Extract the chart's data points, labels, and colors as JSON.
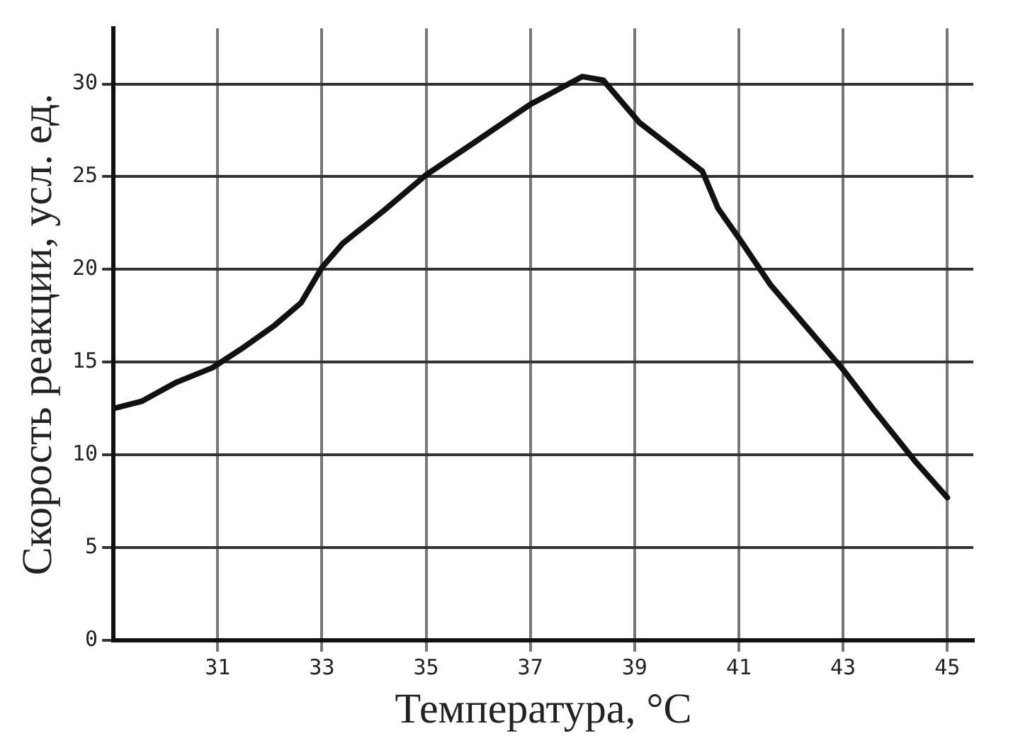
{
  "chart_data": {
    "type": "line",
    "xlabel": "Температура, °С",
    "ylabel": "Скорость реакции, усл. ед.",
    "xlim": [
      29,
      45.5
    ],
    "xticks": [
      31,
      33,
      35,
      37,
      39,
      41,
      43,
      45
    ],
    "ylim": [
      0,
      33
    ],
    "yticks": [
      0,
      5,
      10,
      15,
      20,
      25,
      30
    ],
    "grid": true,
    "marker": "none",
    "series": [
      {
        "color": "#111111",
        "x": [
          29,
          29.55,
          30.2,
          30.9,
          31.5,
          32.1,
          32.6,
          33.0,
          33.4,
          34.2,
          35.0,
          35.9,
          37.0,
          37.6,
          38.0,
          38.4,
          39.1,
          39.7,
          40.3,
          40.6,
          41.0,
          41.6,
          42.3,
          43.0,
          43.6,
          44.4,
          45.0
        ],
        "values": [
          12.5,
          12.9,
          13.9,
          14.7,
          15.8,
          17.0,
          18.2,
          20.1,
          21.4,
          23.2,
          25.1,
          26.8,
          28.9,
          29.8,
          30.4,
          30.2,
          27.9,
          26.6,
          25.3,
          23.3,
          21.7,
          19.2,
          16.9,
          14.6,
          12.4,
          9.6,
          7.7
        ]
      }
    ]
  }
}
